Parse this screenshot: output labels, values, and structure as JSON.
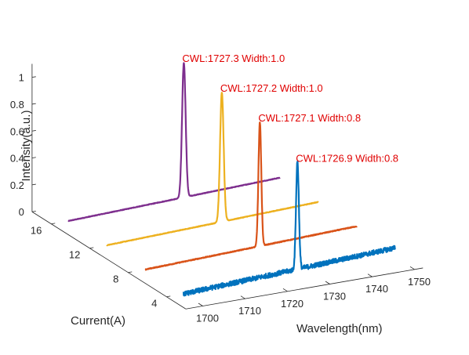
{
  "chart_data": {
    "type": "line",
    "subtype": "3d-waterfall",
    "xlabel": "Wavelength(nm)",
    "ylabel": "Current(A)",
    "zlabel": "Intensity(a.u.)",
    "xlim": [
      1696,
      1752
    ],
    "ylim": [
      2,
      18
    ],
    "zlim": [
      0,
      1.1
    ],
    "x_ticks": [
      "1700",
      "1710",
      "1720",
      "1730",
      "1740",
      "1750"
    ],
    "y_ticks": [
      "4",
      "8",
      "12",
      "16"
    ],
    "z_ticks": [
      "0",
      "0.2",
      "0.4",
      "0.6",
      "0.8",
      "1"
    ],
    "grid": false,
    "legend": "none",
    "series": [
      {
        "current": 4,
        "color": "#0072BD",
        "peak_wavelength": 1726.9,
        "peak_intensity": 0.8,
        "fwhm": 0.8,
        "baseline_start": 0.0,
        "baseline_end": 0.07,
        "noise": 0.018,
        "annotation": "CWL:1726.9    Width:0.8"
      },
      {
        "current": 8,
        "color": "#D95319",
        "peak_wavelength": 1727.1,
        "peak_intensity": 0.92,
        "fwhm": 0.8,
        "baseline_start": 0.0,
        "baseline_end": 0.05,
        "noise": 0.003,
        "annotation": "CWL:1727.1    Width:0.8"
      },
      {
        "current": 12,
        "color": "#EDB120",
        "peak_wavelength": 1727.2,
        "peak_intensity": 0.96,
        "fwhm": 1.0,
        "baseline_start": 0.0,
        "baseline_end": 0.05,
        "noise": 0.002,
        "annotation": "CWL:1727.2    Width:1.0"
      },
      {
        "current": 16,
        "color": "#7E2F8E",
        "peak_wavelength": 1727.3,
        "peak_intensity": 1.0,
        "fwhm": 1.0,
        "baseline_start": 0.0,
        "baseline_end": 0.05,
        "noise": 0.002,
        "annotation": "CWL:1727.3    Width:1.0"
      }
    ]
  }
}
